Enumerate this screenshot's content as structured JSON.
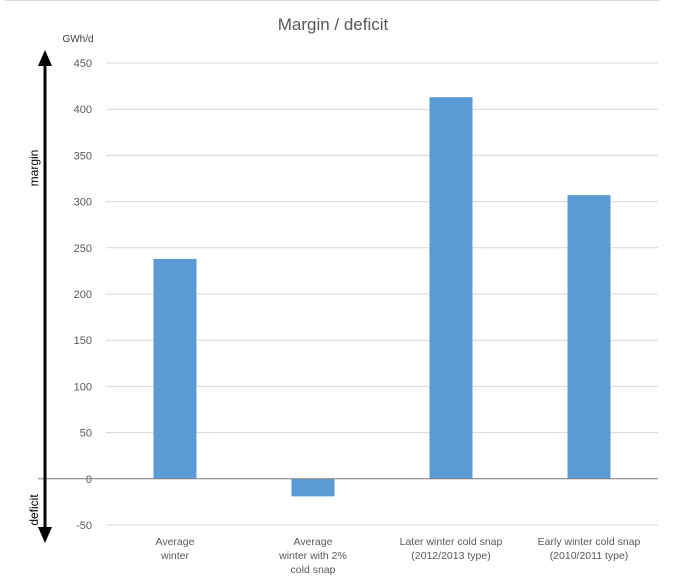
{
  "chart_data": {
    "type": "bar",
    "title": "Margin / deficit",
    "unit_label": "GWh/d",
    "categories": [
      [
        "Average",
        "winter"
      ],
      [
        "Average",
        "winter with 2%",
        "cold snap"
      ],
      [
        "Later winter cold snap",
        "(2012/2013 type)"
      ],
      [
        "Early winter cold snap",
        "(2010/2011 type)"
      ]
    ],
    "values": [
      238,
      -19,
      413,
      307
    ],
    "ylim": [
      -50,
      450
    ],
    "yticks": [
      -50,
      0,
      50,
      100,
      150,
      200,
      250,
      300,
      350,
      400,
      450
    ],
    "grid": true,
    "bar_color": "#5B9BD5",
    "side_labels": {
      "up": "margin",
      "down": "deficit"
    }
  }
}
